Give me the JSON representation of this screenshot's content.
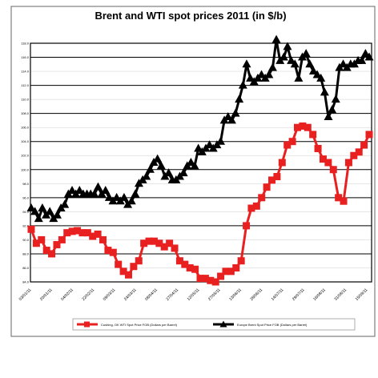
{
  "chart_data": {
    "type": "line",
    "title": "Brent and WTI spot prices 2011 (in $/b)",
    "xlabel": "",
    "ylabel": "",
    "ylim": [
      84.0,
      118.0
    ],
    "ytick_values": [
      84.0,
      86.0,
      88.0,
      90.0,
      92.0,
      94.0,
      96.0,
      98.0,
      100.0,
      102.0,
      104.0,
      106.0,
      108.0,
      110.0,
      112.0,
      114.0,
      116.0,
      118.0
    ],
    "ytick_labels": [
      "84.0",
      "86.0",
      "88.0",
      "90.0",
      "92.0",
      "94.0",
      "96.0",
      "98.0",
      "100.0",
      "102.0",
      "104.0",
      "106.0",
      "108.0",
      "110.0",
      "112.0",
      "114.0",
      "116.0",
      "118.0"
    ],
    "x_tick_labels": [
      "03/01/11",
      "20/01/11",
      "04/02/11",
      "22/02/11",
      "09/03/11",
      "24/03/11",
      "08/04/11",
      "27/04/11",
      "12/05/11",
      "27/05/11",
      "13/06/11",
      "28/06/11",
      "14/07/11",
      "29/07/11",
      "16/08/11",
      "31/08/11",
      "15/09/11"
    ],
    "grid": "major horizontal",
    "legend": "bottom",
    "series": [
      {
        "name": "Cushing, OK WTI Spot Price FOB (Dollars per Barrel)",
        "color": "#e82020",
        "marker": "square",
        "values": [
          91.5,
          89.5,
          90.0,
          88.5,
          88.0,
          89.3,
          90.0,
          91.0,
          91.2,
          91.3,
          91.0,
          91.0,
          90.5,
          90.8,
          90.0,
          88.5,
          88.2,
          86.5,
          85.5,
          85.0,
          86.2,
          87.0,
          89.5,
          89.8,
          89.8,
          89.5,
          89.0,
          89.5,
          88.8,
          87.0,
          86.5,
          86.0,
          85.8,
          84.5,
          84.5,
          84.2,
          84.0,
          84.8,
          85.5,
          85.5,
          86.0,
          87.0,
          92.0,
          94.5,
          94.8,
          96.0,
          97.5,
          98.5,
          99.0,
          101.0,
          103.5,
          104.0,
          106.0,
          106.2,
          106.0,
          105.0,
          103.0,
          101.5,
          101.0,
          100.0,
          96.0,
          95.5,
          101.0,
          102.0,
          102.5,
          103.5,
          105.0
        ]
      },
      {
        "name": "Europe Brent Spot Price FOB (Dollars per Barrel)",
        "color": "#000000",
        "marker": "triangle",
        "values": [
          94.5,
          94.0,
          93.0,
          94.5,
          93.5,
          94.0,
          93.0,
          93.5,
          94.5,
          95.0,
          96.5,
          97.0,
          96.5,
          97.0,
          96.5,
          96.5,
          96.5,
          96.5,
          97.5,
          96.5,
          97.0,
          96.0,
          95.5,
          96.0,
          95.5,
          96.0,
          95.0,
          95.5,
          96.5,
          98.0,
          98.5,
          99.0,
          100.0,
          101.0,
          101.5,
          100.5,
          99.0,
          99.5,
          98.5,
          98.5,
          99.0,
          99.5,
          100.5,
          101.0,
          100.5,
          103.0,
          102.5,
          103.0,
          103.5,
          103.0,
          103.5,
          104.0,
          107.0,
          107.5,
          107.0,
          108.0,
          110.0,
          112.0,
          115.0,
          113.0,
          112.5,
          113.0,
          113.5,
          113.0,
          113.5,
          114.5,
          118.5,
          115.5,
          116.0,
          117.5,
          115.5,
          115.0,
          113.0,
          116.0,
          116.5,
          115.0,
          114.0,
          113.5,
          113.0,
          111.0,
          107.5,
          108.5,
          110.0,
          114.5,
          115.0,
          114.5,
          115.0,
          115.0,
          115.5,
          115.5,
          116.5,
          116.0
        ]
      }
    ]
  }
}
